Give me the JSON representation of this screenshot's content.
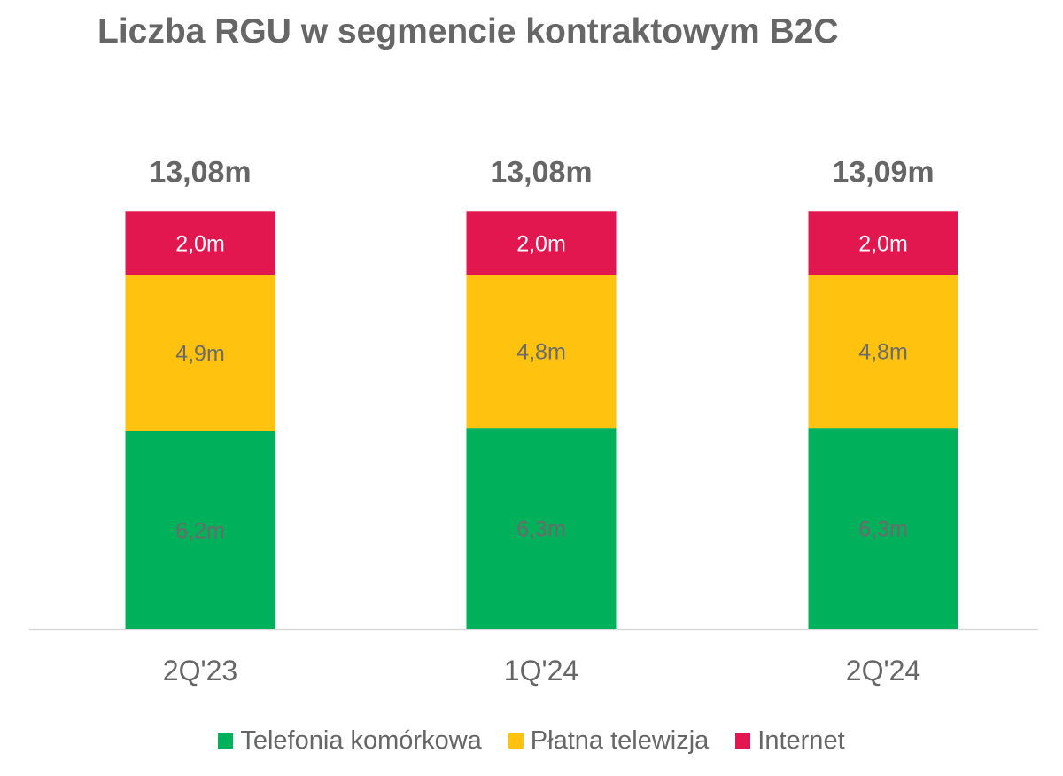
{
  "chart_data": {
    "type": "bar",
    "stacked": true,
    "title": "Liczba RGU w segmencie kontraktowym B2C",
    "categories": [
      "2Q'23",
      "1Q'24",
      "2Q'24"
    ],
    "totals": [
      "13,08m",
      "13,08m",
      "13,09m"
    ],
    "total_values": [
      13.08,
      13.08,
      13.09
    ],
    "series": [
      {
        "name": "Telefonia komórkowa",
        "color": "#00B05A",
        "label_color": "#6b6b6b",
        "values": [
          6.2,
          6.3,
          6.3
        ],
        "labels": [
          "6,2m",
          "6,3m",
          "6,3m"
        ]
      },
      {
        "name": "Płatna telewizja",
        "color": "#FFC20E",
        "label_color": "#6b6b6b",
        "values": [
          4.9,
          4.8,
          4.8
        ],
        "labels": [
          "4,9m",
          "4,8m",
          "4,8m"
        ]
      },
      {
        "name": "Internet",
        "color": "#E3174F",
        "label_color": "#ffffff",
        "values": [
          2.0,
          2.0,
          2.0
        ],
        "labels": [
          "2,0m",
          "2,0m",
          "2,0m"
        ]
      }
    ],
    "xlabel": "",
    "ylabel": "",
    "ylim": [
      0,
      13.09
    ],
    "grid": false,
    "legend_position": "bottom"
  }
}
